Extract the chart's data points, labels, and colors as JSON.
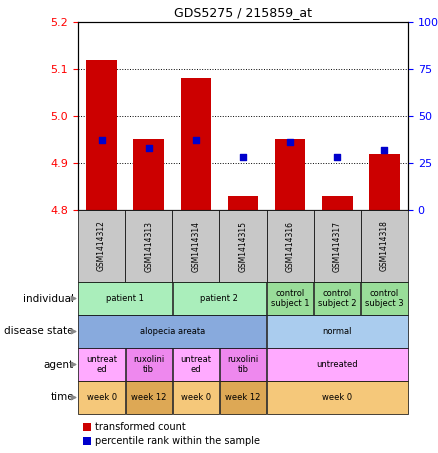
{
  "title": "GDS5275 / 215859_at",
  "samples": [
    "GSM1414312",
    "GSM1414313",
    "GSM1414314",
    "GSM1414315",
    "GSM1414316",
    "GSM1414317",
    "GSM1414318"
  ],
  "bar_values": [
    5.12,
    4.95,
    5.08,
    4.83,
    4.95,
    4.83,
    4.92
  ],
  "blue_dot_values": [
    37,
    33,
    37,
    28,
    36,
    28,
    32
  ],
  "ylim": [
    4.8,
    5.2
  ],
  "yticks": [
    4.8,
    4.9,
    5.0,
    5.1,
    5.2
  ],
  "y2lim": [
    0,
    100
  ],
  "y2ticks": [
    0,
    25,
    50,
    75,
    100
  ],
  "y2ticklabels": [
    "0",
    "25",
    "50",
    "75",
    "100%"
  ],
  "bar_color": "#cc0000",
  "dot_color": "#0000cc",
  "bar_width": 0.65,
  "sample_box_color": "#c8c8c8",
  "annotation_rows": [
    {
      "label": "individual",
      "cells": [
        {
          "text": "patient 1",
          "span": 2,
          "color": "#aaeebb"
        },
        {
          "text": "patient 2",
          "span": 2,
          "color": "#aaeebb"
        },
        {
          "text": "control\nsubject 1",
          "span": 1,
          "color": "#99dd99"
        },
        {
          "text": "control\nsubject 2",
          "span": 1,
          "color": "#99dd99"
        },
        {
          "text": "control\nsubject 3",
          "span": 1,
          "color": "#99dd99"
        }
      ]
    },
    {
      "label": "disease state",
      "cells": [
        {
          "text": "alopecia areata",
          "span": 4,
          "color": "#88aadd"
        },
        {
          "text": "normal",
          "span": 3,
          "color": "#aaccee"
        }
      ]
    },
    {
      "label": "agent",
      "cells": [
        {
          "text": "untreat\ned",
          "span": 1,
          "color": "#ffaaff"
        },
        {
          "text": "ruxolini\ntib",
          "span": 1,
          "color": "#ee88ee"
        },
        {
          "text": "untreat\ned",
          "span": 1,
          "color": "#ffaaff"
        },
        {
          "text": "ruxolini\ntib",
          "span": 1,
          "color": "#ee88ee"
        },
        {
          "text": "untreated",
          "span": 3,
          "color": "#ffaaff"
        }
      ]
    },
    {
      "label": "time",
      "cells": [
        {
          "text": "week 0",
          "span": 1,
          "color": "#f5c87a"
        },
        {
          "text": "week 12",
          "span": 1,
          "color": "#dda855"
        },
        {
          "text": "week 0",
          "span": 1,
          "color": "#f5c87a"
        },
        {
          "text": "week 12",
          "span": 1,
          "color": "#dda855"
        },
        {
          "text": "week 0",
          "span": 3,
          "color": "#f5c87a"
        }
      ]
    }
  ],
  "legend_items": [
    {
      "color": "#cc0000",
      "label": "transformed count"
    },
    {
      "color": "#0000cc",
      "label": "percentile rank within the sample"
    }
  ]
}
